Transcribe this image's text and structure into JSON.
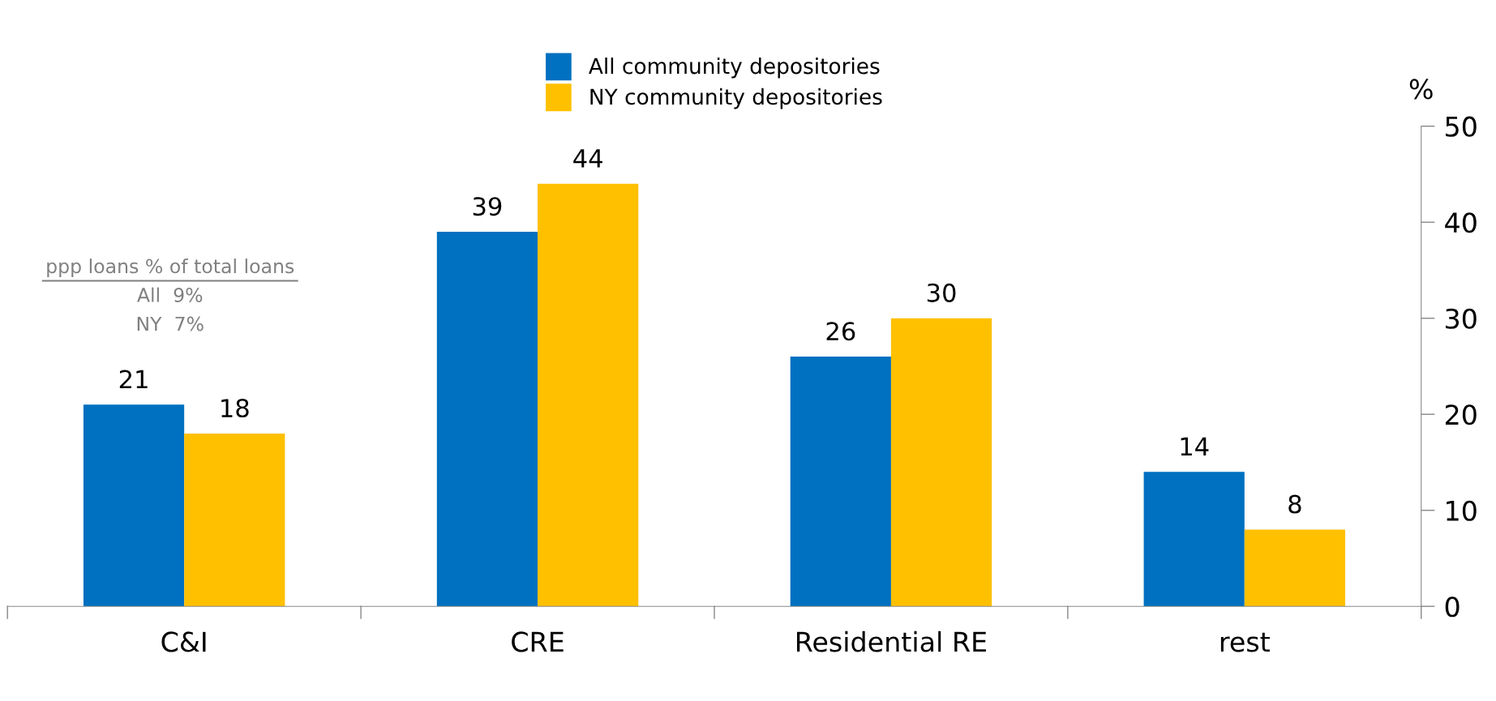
{
  "chart_data": {
    "type": "bar",
    "categories": [
      "C&I",
      "CRE",
      "Residential RE",
      "rest"
    ],
    "series": [
      {
        "name": "All community depositories",
        "color": "#0070c0",
        "values": [
          21,
          39,
          26,
          14
        ]
      },
      {
        "name": "NY community depositories",
        "color": "#ffc000",
        "values": [
          18,
          44,
          30,
          8
        ]
      }
    ],
    "ylabel": "%",
    "ylim": [
      0,
      50
    ],
    "yticks": [
      0,
      10,
      20,
      30,
      40,
      50
    ],
    "data_labels": true,
    "grid": false,
    "legend": "top",
    "annotations": [
      "ppp loans % of total loans",
      "All  9%",
      "NY  7%"
    ]
  }
}
